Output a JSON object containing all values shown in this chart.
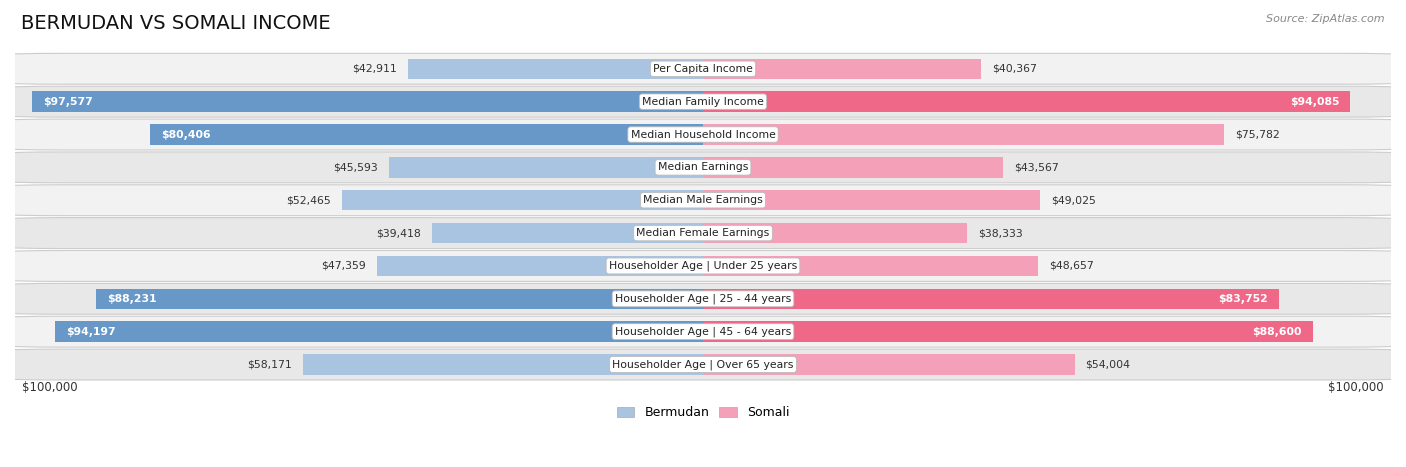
{
  "title": "BERMUDAN VS SOMALI INCOME",
  "source": "Source: ZipAtlas.com",
  "max_val": 100000,
  "categories": [
    "Per Capita Income",
    "Median Family Income",
    "Median Household Income",
    "Median Earnings",
    "Median Male Earnings",
    "Median Female Earnings",
    "Householder Age | Under 25 years",
    "Householder Age | 25 - 44 years",
    "Householder Age | 45 - 64 years",
    "Householder Age | Over 65 years"
  ],
  "bermudan": [
    42911,
    97577,
    80406,
    45593,
    52465,
    39418,
    47359,
    88231,
    94197,
    58171
  ],
  "somali": [
    40367,
    94085,
    75782,
    43567,
    49025,
    38333,
    48657,
    83752,
    88600,
    54004
  ],
  "bermudan_color": "#a8c4e0",
  "somali_color": "#f4a0b8",
  "bermudan_sat_color": "#6898c8",
  "somali_sat_color": "#f06888",
  "row_bg_odd": "#f2f2f2",
  "row_bg_even": "#e8e8e8",
  "bar_height": 0.62,
  "xlabel_left": "$100,000",
  "xlabel_right": "$100,000",
  "legend_bermudan": "Bermudan",
  "legend_somali": "Somali",
  "title_fontsize": 14,
  "source_fontsize": 8,
  "label_fontsize": 7.8,
  "value_fontsize": 7.8
}
